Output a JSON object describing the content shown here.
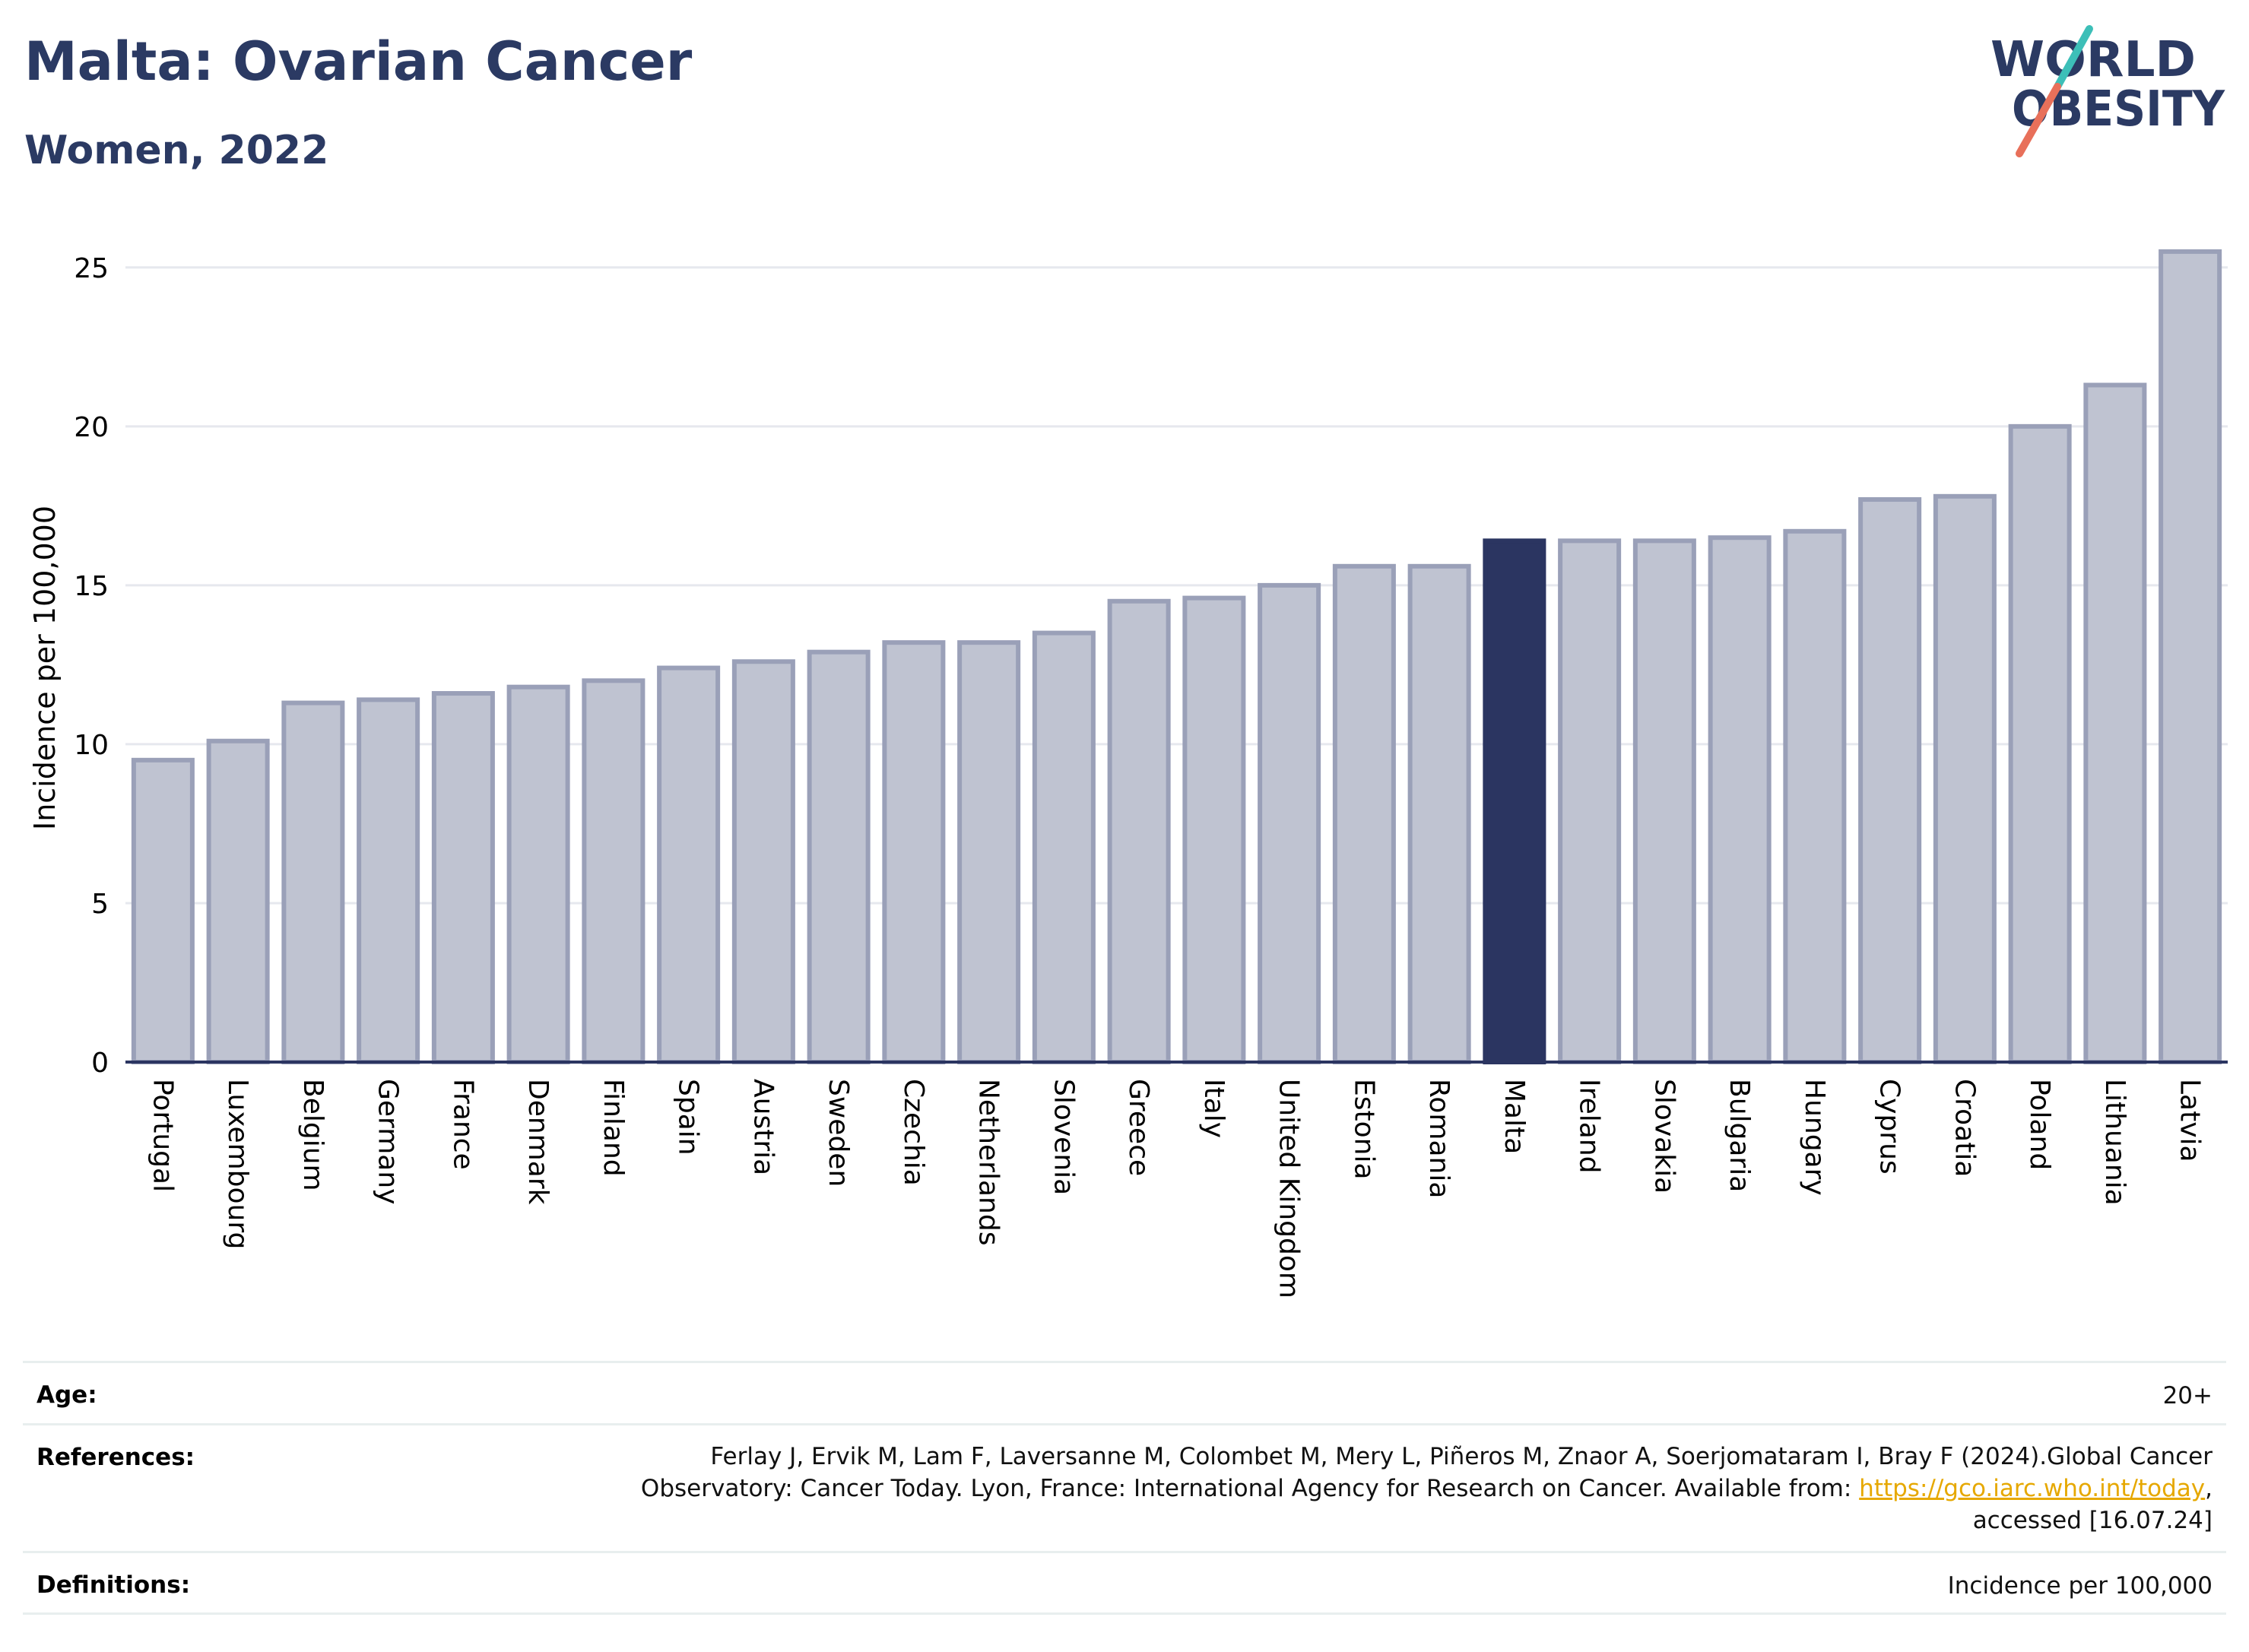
{
  "header": {
    "title": "Malta: Ovarian Cancer",
    "subtitle": "Women, 2022"
  },
  "logo": {
    "line1": "WORLD",
    "line2": "OBESITY",
    "colors": {
      "text": "#2b3a63",
      "slash_top": "#3dbfb8",
      "slash_bottom": "#e8705a"
    }
  },
  "chart_data": {
    "type": "bar",
    "ylabel": "Incidence per 100,000",
    "xlabel": "",
    "ylim": [
      0,
      26
    ],
    "yticks": [
      0,
      5,
      10,
      15,
      20,
      25
    ],
    "grid": true,
    "highlight": "Malta",
    "colors": {
      "bar": "#bfc3d1",
      "bar_border": "#9aa0b8",
      "highlight": "#2b3561",
      "grid": "#e6e8ee",
      "axis": "#2b3561"
    },
    "categories": [
      "Portugal",
      "Luxembourg",
      "Belgium",
      "Germany",
      "France",
      "Denmark",
      "Finland",
      "Spain",
      "Austria",
      "Sweden",
      "Czechia",
      "Netherlands",
      "Slovenia",
      "Greece",
      "Italy",
      "United Kingdom",
      "Estonia",
      "Romania",
      "Malta",
      "Ireland",
      "Slovakia",
      "Bulgaria",
      "Hungary",
      "Cyprus",
      "Croatia",
      "Poland",
      "Lithuania",
      "Latvia"
    ],
    "values": [
      9.5,
      10.1,
      11.3,
      11.4,
      11.6,
      11.8,
      12.0,
      12.4,
      12.6,
      12.9,
      13.2,
      13.2,
      13.5,
      14.5,
      14.6,
      15.0,
      15.6,
      15.6,
      16.4,
      16.4,
      16.4,
      16.5,
      16.7,
      17.7,
      17.8,
      20.0,
      21.3,
      25.5
    ]
  },
  "footer": {
    "age": {
      "label": "Age:",
      "value": "20+"
    },
    "references": {
      "label": "References:",
      "line1": "Ferlay J, Ervik M, Lam F, Laversanne M, Colombet M, Mery L, Piñeros M, Znaor A, Soerjomataram I, Bray F (2024).Global Cancer",
      "line2_prefix": "Observatory: Cancer Today. Lyon, France: International Agency for Research on Cancer. Available from: ",
      "link": "https://gco.iarc.who.int/today",
      "line2_suffix": ",",
      "line3": "accessed [16.07.24]"
    },
    "definitions": {
      "label": "Definitions:",
      "value": "Incidence per 100,000"
    }
  }
}
